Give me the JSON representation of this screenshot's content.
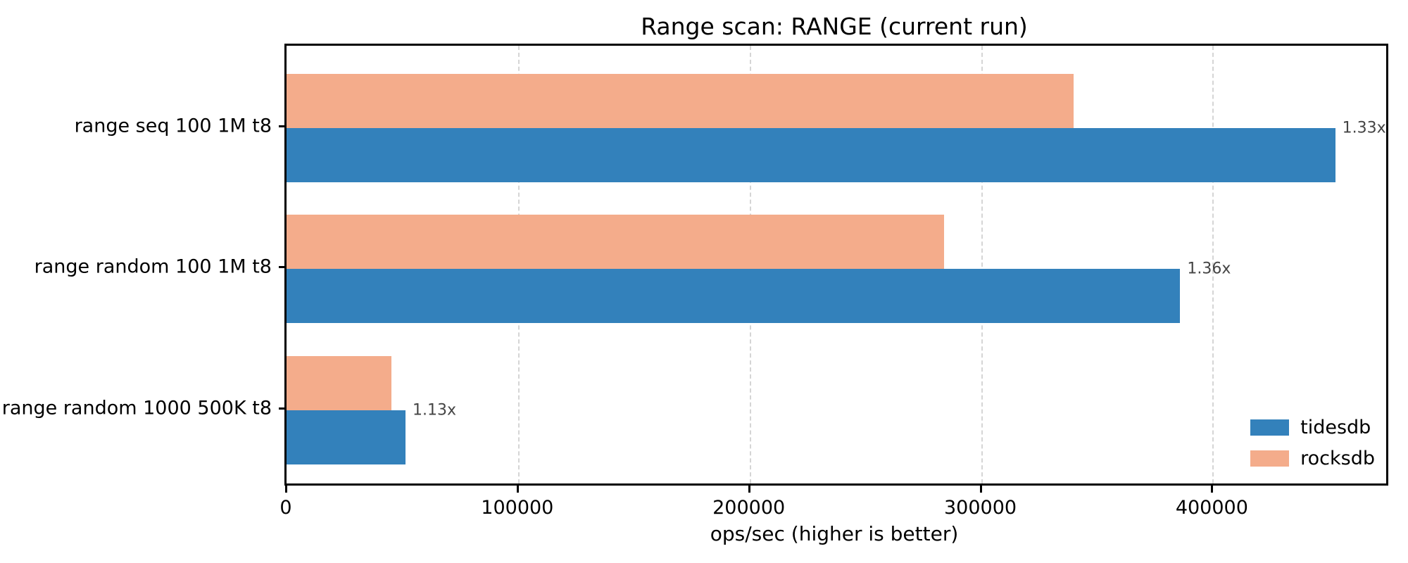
{
  "chart_data": {
    "type": "bar",
    "orientation": "horizontal",
    "title": "Range scan: RANGE (current run)",
    "xlabel": "ops/sec (higher is better)",
    "categories": [
      "range seq 100 1M t8",
      "range random 100 1M t8",
      "range random 1000 500K t8"
    ],
    "series": [
      {
        "name": "tidesdb",
        "color": "#3381bb",
        "values": [
          453000,
          386000,
          51400
        ]
      },
      {
        "name": "rocksdb",
        "color": "#f4ac8b",
        "values": [
          340000,
          284000,
          45300
        ]
      }
    ],
    "annotations": [
      "1.33x",
      "1.36x",
      "1.13x"
    ],
    "xticks": [
      0,
      100000,
      200000,
      300000,
      400000
    ],
    "xtick_labels": [
      "0",
      "100000",
      "200000",
      "300000",
      "400000"
    ],
    "xlim": [
      0,
      475000
    ],
    "grid": "vertical-dashed",
    "legend_position": "lower-right",
    "annotation_color": "#444444",
    "grid_color": "#d5d5d5"
  }
}
